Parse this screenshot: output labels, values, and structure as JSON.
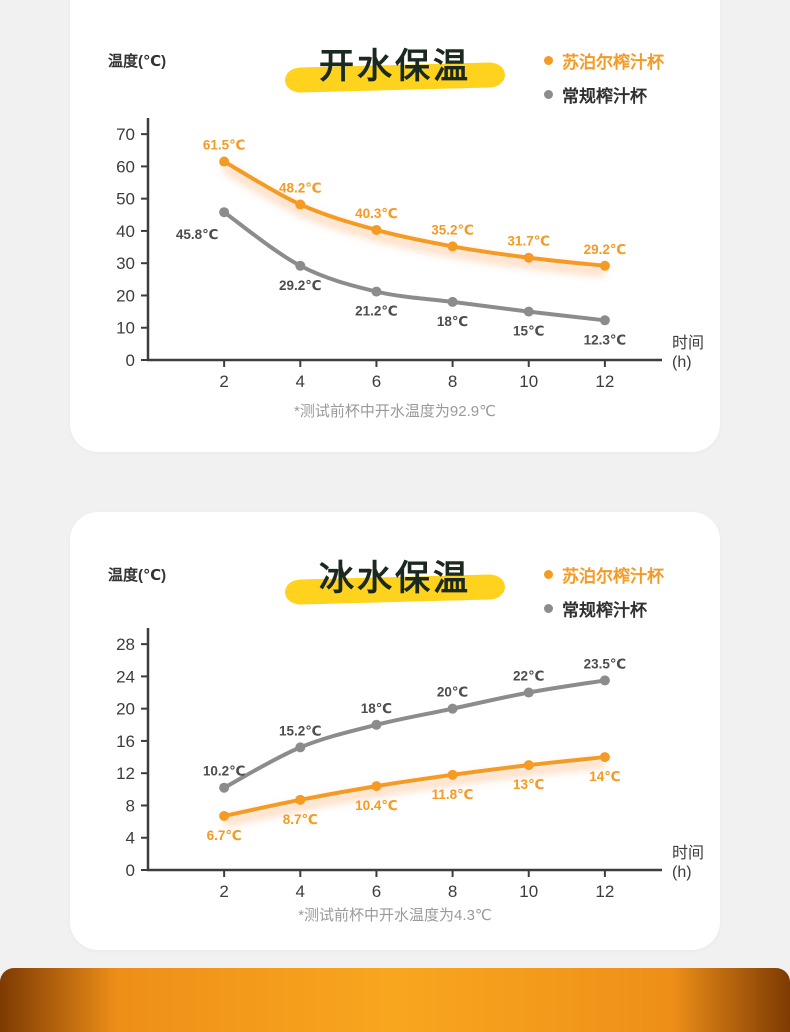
{
  "page": {
    "background": "#f1f1f2",
    "card_background": "#ffffff"
  },
  "banner": {
    "colors": [
      "#7d3a02",
      "#ee8f18",
      "#f9a61f",
      "#ee8f18",
      "#7d3a02"
    ]
  },
  "chart_data": [
    {
      "type": "line",
      "title": "开水保温",
      "ylabel": "温度(℃)",
      "xlabel": "时间(h)",
      "highlight_color": "#ffd21e",
      "x": [
        2,
        4,
        6,
        8,
        10,
        12
      ],
      "xlim": [
        0,
        13.5
      ],
      "yticks": [
        0,
        10,
        20,
        30,
        40,
        50,
        60,
        70
      ],
      "ylim": [
        0,
        75
      ],
      "grid": false,
      "legend_position": "top-right",
      "footnote": "*测试前杯中开水温度为92.9℃",
      "series": [
        {
          "name": "苏泊尔榨汁杯",
          "color": "#f59a23",
          "legend_text_color": "#f59a23",
          "label_color": "#f59a23",
          "glow_color": "#ffc9a0",
          "values": [
            61.5,
            48.2,
            40.3,
            35.2,
            31.7,
            29.2
          ],
          "point_labels": [
            "61.5℃",
            "48.2℃",
            "40.3℃",
            "35.2℃",
            "31.7℃",
            "29.2℃"
          ],
          "label_side": "above"
        },
        {
          "name": "常规榨汁杯",
          "color": "#8c8c8c",
          "legend_text_color": "#303030",
          "label_color": "#4d4d4d",
          "values": [
            45.8,
            29.2,
            21.2,
            18,
            15,
            12.3
          ],
          "point_labels": [
            "45.8℃",
            "29.2℃",
            "21.2℃",
            "18℃",
            "15℃",
            "12.3℃"
          ],
          "label_side": "below",
          "label_offsets": [
            [
              -27,
              3
            ],
            [
              0,
              0
            ],
            [
              0,
              0
            ],
            [
              0,
              0
            ],
            [
              0,
              0
            ],
            [
              0,
              0
            ]
          ]
        }
      ]
    },
    {
      "type": "line",
      "title": "冰水保温",
      "ylabel": "温度(℃)",
      "xlabel": "时间(h)",
      "highlight_color": "#ffd21e",
      "x": [
        2,
        4,
        6,
        8,
        10,
        12
      ],
      "xlim": [
        0,
        13.5
      ],
      "yticks": [
        0,
        4,
        8,
        12,
        16,
        20,
        24,
        28
      ],
      "ylim": [
        0,
        30
      ],
      "grid": false,
      "legend_position": "top-right",
      "footnote": "*测试前杯中开水温度为4.3℃",
      "series": [
        {
          "name": "苏泊尔榨汁杯",
          "color": "#f59a23",
          "legend_text_color": "#f59a23",
          "label_color": "#f59a23",
          "glow_color": "#ffc9a0",
          "values": [
            6.7,
            8.7,
            10.4,
            11.8,
            13,
            14
          ],
          "point_labels": [
            "6.7℃",
            "8.7℃",
            "10.4℃",
            "11.8℃",
            "13℃",
            "14℃"
          ],
          "label_side": "below"
        },
        {
          "name": "常规榨汁杯",
          "color": "#8c8c8c",
          "legend_text_color": "#303030",
          "label_color": "#4d4d4d",
          "values": [
            10.2,
            15.2,
            18,
            20,
            22,
            23.5
          ],
          "point_labels": [
            "10.2℃",
            "15.2℃",
            "18℃",
            "20℃",
            "22℃",
            "23.5℃"
          ],
          "label_side": "above"
        }
      ]
    }
  ]
}
